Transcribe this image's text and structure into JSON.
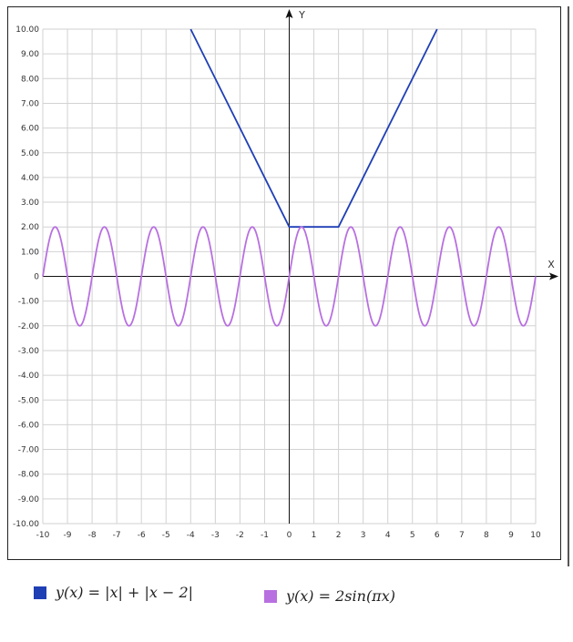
{
  "chart_data": {
    "type": "line",
    "xlabel": "X",
    "ylabel": "Y",
    "xlim": [
      -10,
      10
    ],
    "ylim": [
      -10,
      10
    ],
    "grid": true,
    "x_ticks": [
      "-10",
      "-9",
      "-8",
      "-7",
      "-6",
      "-5",
      "-4",
      "-3",
      "-2",
      "-1",
      "0",
      "1",
      "2",
      "3",
      "4",
      "5",
      "6",
      "7",
      "8",
      "9",
      "10"
    ],
    "y_ticks": [
      "10.00",
      "9.00",
      "8.00",
      "7.00",
      "6.00",
      "5.00",
      "4.00",
      "3.00",
      "2.00",
      "1.00",
      "0",
      "-1.00",
      "-2.00",
      "-3.00",
      "-4.00",
      "-5.00",
      "-6.00",
      "-7.00",
      "-8.00",
      "-9.00",
      "-10.00"
    ],
    "legend_placement": "bottom",
    "series": [
      {
        "name": "y(x) = |x| + |x − 2|",
        "color": "#1f3fb5",
        "x": [
          -4,
          0,
          2,
          6
        ],
        "y": [
          10,
          2,
          2,
          10
        ]
      },
      {
        "name": "y(x) = 2sin(πx)",
        "color": "#b870e0",
        "x": [
          -10,
          -9.5,
          -9,
          -8.5,
          -8,
          -7.5,
          -7,
          -6.5,
          -6,
          -5.5,
          -5,
          -4.5,
          -4,
          -3.5,
          -3,
          -2.5,
          -2,
          -1.5,
          -1,
          -0.5,
          0,
          0.5,
          1,
          1.5,
          2,
          2.5,
          3,
          3.5,
          4,
          4.5,
          5,
          5.5,
          6,
          6.5,
          7,
          7.5,
          8,
          8.5,
          9,
          9.5,
          10
        ],
        "y": [
          0,
          2,
          0,
          -2,
          0,
          2,
          0,
          -2,
          0,
          2,
          0,
          -2,
          0,
          2,
          0,
          -2,
          0,
          2,
          0,
          -2,
          0,
          2,
          0,
          -2,
          0,
          2,
          0,
          -2,
          0,
          2,
          0,
          -2,
          0,
          2,
          0,
          -2,
          0,
          2,
          0,
          -2,
          0
        ]
      }
    ]
  },
  "legend": {
    "items": [
      {
        "text": "y(x) = |x| + |x − 2|",
        "color": "#1f3fb5"
      },
      {
        "text": "y(x) = 2sin(πx)",
        "color": "#b870e0"
      }
    ]
  }
}
